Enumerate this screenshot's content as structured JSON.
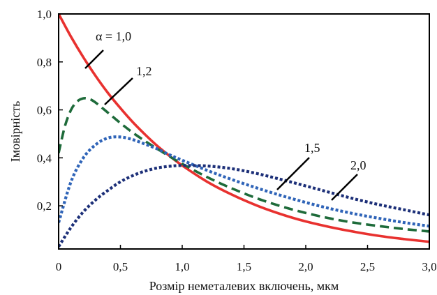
{
  "chart_data": {
    "type": "line",
    "xlabel": "Розмір неметалевих включень, мкм",
    "ylabel": "Імовірність",
    "xlim": [
      0,
      3.0
    ],
    "ylim": [
      0.02,
      1.0
    ],
    "x_ticks": [
      "0",
      "0,5",
      "1,0",
      "1,5",
      "2,0",
      "2,5",
      "3,0"
    ],
    "x_tick_values": [
      0,
      0.5,
      1.0,
      1.5,
      2.0,
      2.5,
      3.0
    ],
    "y_ticks": [
      "0,2",
      "0,4",
      "0,6",
      "0,8",
      "1,0"
    ],
    "y_tick_values": [
      0.2,
      0.4,
      0.6,
      0.8,
      1.0
    ],
    "grid": false,
    "series": [
      {
        "name": "α = 1,0",
        "color": "#e8312f",
        "style": "solid",
        "x": [
          0,
          0.1,
          0.2,
          0.3,
          0.4,
          0.5,
          0.6,
          0.7,
          0.8,
          0.9,
          1.0,
          1.2,
          1.4,
          1.6,
          1.8,
          2.0,
          2.2,
          2.4,
          2.6,
          2.8,
          3.0
        ],
        "values": [
          1.0,
          0.905,
          0.819,
          0.741,
          0.67,
          0.607,
          0.549,
          0.497,
          0.449,
          0.407,
          0.368,
          0.301,
          0.247,
          0.202,
          0.165,
          0.135,
          0.111,
          0.091,
          0.074,
          0.061,
          0.05
        ]
      },
      {
        "name": "1,2",
        "color": "#1e6b3a",
        "style": "long-dash",
        "x": [
          0,
          0.05,
          0.1,
          0.15,
          0.2,
          0.25,
          0.3,
          0.4,
          0.5,
          0.6,
          0.7,
          0.8,
          0.9,
          1.0,
          1.2,
          1.4,
          1.6,
          1.8,
          2.0,
          2.2,
          2.4,
          2.6,
          2.8,
          3.0
        ],
        "values": [
          0.42,
          0.53,
          0.6,
          0.635,
          0.648,
          0.645,
          0.63,
          0.588,
          0.545,
          0.505,
          0.47,
          0.437,
          0.405,
          0.375,
          0.32,
          0.273,
          0.232,
          0.198,
          0.17,
          0.147,
          0.129,
          0.115,
          0.103,
          0.093
        ]
      },
      {
        "name": "1,5",
        "color": "#2f64b8",
        "style": "dotted",
        "x": [
          0,
          0.1,
          0.2,
          0.3,
          0.4,
          0.5,
          0.6,
          0.7,
          0.8,
          0.9,
          1.0,
          1.2,
          1.4,
          1.6,
          1.8,
          2.0,
          2.2,
          2.4,
          2.6,
          2.8,
          3.0
        ],
        "values": [
          0.13,
          0.3,
          0.4,
          0.455,
          0.483,
          0.487,
          0.476,
          0.457,
          0.437,
          0.412,
          0.39,
          0.348,
          0.31,
          0.275,
          0.243,
          0.214,
          0.188,
          0.166,
          0.147,
          0.13,
          0.115
        ]
      },
      {
        "name": "2,0",
        "color": "#1c2f78",
        "style": "dotted",
        "x": [
          0,
          0.1,
          0.2,
          0.3,
          0.4,
          0.5,
          0.6,
          0.7,
          0.8,
          0.9,
          1.0,
          1.2,
          1.4,
          1.6,
          1.8,
          2.0,
          2.2,
          2.4,
          2.6,
          2.8,
          3.0
        ],
        "values": [
          0.03,
          0.11,
          0.175,
          0.225,
          0.265,
          0.3,
          0.326,
          0.345,
          0.358,
          0.365,
          0.368,
          0.366,
          0.355,
          0.335,
          0.31,
          0.283,
          0.255,
          0.228,
          0.204,
          0.183,
          0.162
        ]
      }
    ]
  }
}
